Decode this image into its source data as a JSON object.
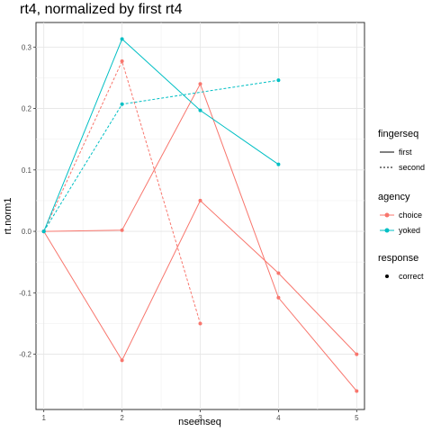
{
  "chart_data": {
    "type": "line",
    "title": "rt4, normalized by first rt4",
    "xlabel": "nseenseq",
    "ylabel": "rt.norm1",
    "xlim": [
      0.9,
      5.1
    ],
    "ylim": [
      -0.29,
      0.34
    ],
    "x_ticks": [
      1,
      2,
      3,
      4,
      5
    ],
    "y_ticks": [
      -0.2,
      -0.1,
      0.0,
      0.1,
      0.2,
      0.3
    ],
    "x_tick_labels": [
      "1",
      "2",
      "3",
      "4",
      "5"
    ],
    "y_tick_labels": [
      "-0.2",
      "-0.1",
      "0.0",
      "0.1",
      "0.2",
      "0.3"
    ],
    "grid": true,
    "colors": {
      "choice": "#f8766d",
      "yoked": "#00bfc4"
    },
    "series": [
      {
        "agency": "choice",
        "fingerseq": "first",
        "x": [
          1,
          2,
          3,
          4,
          5
        ],
        "y": [
          0.0,
          0.002,
          0.24,
          -0.108,
          -0.26
        ]
      },
      {
        "agency": "choice",
        "fingerseq": "first",
        "x": [
          1,
          2,
          3,
          4,
          5
        ],
        "y": [
          0.0,
          -0.21,
          0.05,
          -0.068,
          -0.2
        ]
      },
      {
        "agency": "choice",
        "fingerseq": "second",
        "x": [
          1,
          2,
          3
        ],
        "y": [
          0.0,
          0.277,
          -0.15
        ]
      },
      {
        "agency": "yoked",
        "fingerseq": "first",
        "x": [
          1,
          2,
          3,
          4
        ],
        "y": [
          0.0,
          0.313,
          0.197,
          0.109
        ]
      },
      {
        "agency": "yoked",
        "fingerseq": "second",
        "x": [
          1,
          2,
          4
        ],
        "y": [
          0.0,
          0.207,
          0.246
        ]
      }
    ],
    "legend": {
      "position": "right",
      "groups": [
        {
          "title": "fingerseq",
          "kind": "linetype",
          "entries": [
            {
              "label": "first",
              "dash": "solid"
            },
            {
              "label": "second",
              "dash": "dashed"
            }
          ]
        },
        {
          "title": "agency",
          "kind": "color",
          "entries": [
            {
              "label": "choice",
              "color": "#f8766d"
            },
            {
              "label": "yoked",
              "color": "#00bfc4"
            }
          ]
        },
        {
          "title": "response",
          "kind": "shape",
          "entries": [
            {
              "label": "correct",
              "color": "#000000"
            }
          ]
        }
      ]
    }
  }
}
